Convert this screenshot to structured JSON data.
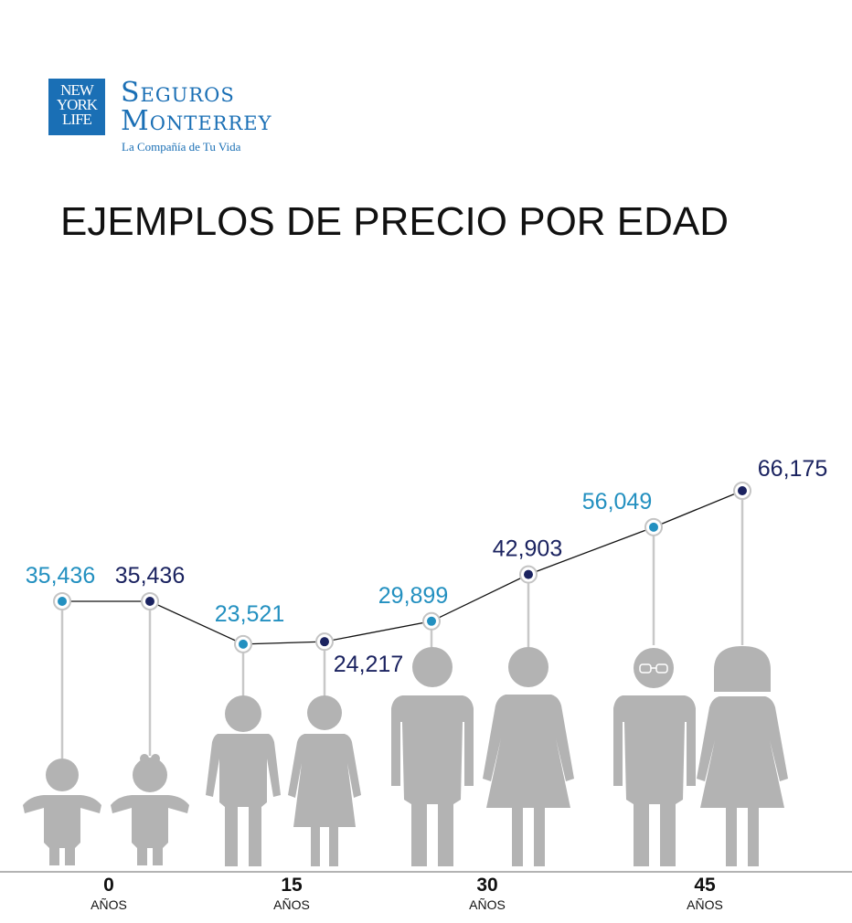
{
  "logo": {
    "box_text": [
      "NEW",
      "YORK",
      "LIFE"
    ],
    "name_line1": "Seguros",
    "name_line2": "Monterrey",
    "tagline": "La Compañía de Tu Vida",
    "color": "#1a6fb5"
  },
  "title": "EJEMPLOS DE PRECIO POR EDAD",
  "colors": {
    "teal": "#2390c0",
    "navy": "#1b2360",
    "figure": "#b3b3b3",
    "line": "#111111"
  },
  "chart_data": {
    "type": "line",
    "title": "EJEMPLOS DE PRECIO POR EDAD",
    "x_labels": [
      {
        "value": "0",
        "unit": "AÑOS"
      },
      {
        "value": "15",
        "unit": "AÑOS"
      },
      {
        "value": "30",
        "unit": "AÑOS"
      },
      {
        "value": "45",
        "unit": "AÑOS"
      }
    ],
    "points": [
      {
        "age": "0",
        "figure": "baby-boy",
        "value": 35436,
        "label": "35,436",
        "color": "teal"
      },
      {
        "age": "0",
        "figure": "baby-girl",
        "value": 35436,
        "label": "35,436",
        "color": "navy"
      },
      {
        "age": "15",
        "figure": "teen-boy",
        "value": 23521,
        "label": "23,521",
        "color": "teal"
      },
      {
        "age": "15",
        "figure": "teen-girl",
        "value": 24217,
        "label": "24,217",
        "color": "navy"
      },
      {
        "age": "30",
        "figure": "man",
        "value": 29899,
        "label": "29,899",
        "color": "teal"
      },
      {
        "age": "30",
        "figure": "woman",
        "value": 42903,
        "label": "42,903",
        "color": "navy"
      },
      {
        "age": "45",
        "figure": "older-man",
        "value": 56049,
        "label": "56,049",
        "color": "teal"
      },
      {
        "age": "45",
        "figure": "older-woman",
        "value": 66175,
        "label": "66,175",
        "color": "navy"
      }
    ]
  }
}
